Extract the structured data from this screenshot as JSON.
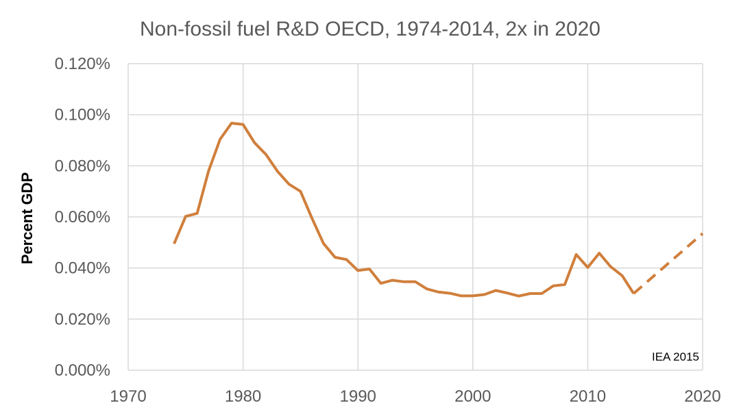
{
  "chart_data": {
    "type": "line",
    "title": "Non-fossil fuel R&D OECD, 1974-2014, 2x in 2020",
    "xlabel": "",
    "ylabel": "Percent GDP",
    "xlim": [
      1970,
      2020
    ],
    "ylim": [
      0,
      0.12
    ],
    "x_ticks": [
      1970,
      1980,
      1990,
      2000,
      2010,
      2020
    ],
    "x_tick_labels": [
      "1970",
      "1980",
      "1990",
      "2000",
      "2010",
      "2020"
    ],
    "y_ticks": [
      0,
      0.02,
      0.04,
      0.06,
      0.08,
      0.1,
      0.12
    ],
    "y_tick_labels": [
      "0.000%",
      "0.020%",
      "0.040%",
      "0.060%",
      "0.080%",
      "0.100%",
      "0.120%"
    ],
    "grid": true,
    "annotation": "IEA 2015",
    "colors": {
      "series": "#d07f3c",
      "grid": "#d9d9d9",
      "text": "#595959"
    },
    "series": [
      {
        "name": "Non-fossil fuel R&D",
        "style": "solid",
        "x": [
          1974,
          1975,
          1976,
          1977,
          1978,
          1979,
          1980,
          1981,
          1982,
          1983,
          1984,
          1985,
          1986,
          1987,
          1988,
          1989,
          1990,
          1991,
          1992,
          1993,
          1994,
          1995,
          1996,
          1997,
          1998,
          1999,
          2000,
          2001,
          2002,
          2003,
          2004,
          2005,
          2006,
          2007,
          2008,
          2009,
          2010,
          2011,
          2012,
          2013,
          2014
        ],
        "values": [
          0.0495,
          0.0602,
          0.0614,
          0.078,
          0.0904,
          0.0967,
          0.0962,
          0.089,
          0.0844,
          0.0778,
          0.0728,
          0.07,
          0.0594,
          0.0496,
          0.0442,
          0.0433,
          0.039,
          0.0396,
          0.034,
          0.0352,
          0.0346,
          0.0346,
          0.0318,
          0.0306,
          0.0301,
          0.0291,
          0.0291,
          0.0296,
          0.0312,
          0.0302,
          0.029,
          0.03,
          0.03,
          0.033,
          0.0335,
          0.0453,
          0.0402,
          0.0458,
          0.0405,
          0.037,
          0.03
        ]
      },
      {
        "name": "2x in 2020 projection",
        "style": "dashed",
        "x": [
          2014,
          2020
        ],
        "values": [
          0.03,
          0.0535
        ]
      }
    ]
  }
}
